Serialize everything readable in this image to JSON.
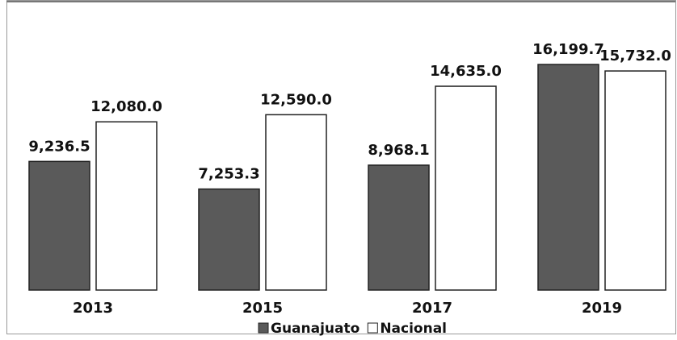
{
  "chart_data": {
    "type": "bar",
    "categories": [
      "2013",
      "2015",
      "2017",
      "2019"
    ],
    "series": [
      {
        "name": "Guanajuato",
        "color": "#5a5a5a",
        "values": [
          9236.5,
          7253.3,
          8968.1,
          16199.7
        ],
        "value_labels": [
          "9,236.5",
          "7,253.3",
          "8,968.1",
          "16,199.7"
        ]
      },
      {
        "name": "Nacional",
        "color": "#ffffff",
        "values": [
          12080.0,
          12590.0,
          14635.0,
          15732.0
        ],
        "value_labels": [
          "12,080.0",
          "12,590.0",
          "14,635.0",
          "15,732.0"
        ]
      }
    ],
    "legend": "bottom"
  }
}
